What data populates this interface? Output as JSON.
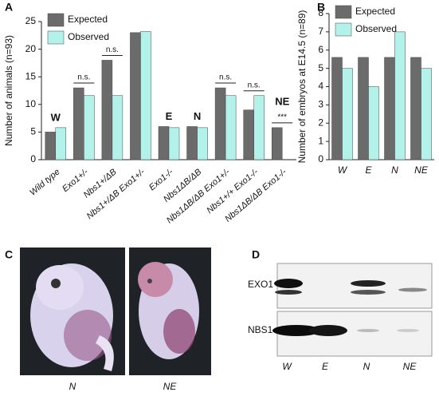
{
  "chart_data": [
    {
      "type": "bar",
      "y_label": "Number of animals (n=93)",
      "categories": [
        "Wild type",
        "Exo1+/-",
        "Nbs1+/ΔB",
        "Nbs1+/ΔB Exo1+/-",
        "Exo1-/-",
        "Nbs1ΔB/ΔB",
        "Nbs1ΔB/ΔB Exo1+/-",
        "Nbs1+/+ Exo1-/-",
        "Nbs1ΔB/ΔB Exo1-/-"
      ],
      "series": [
        {
          "name": "Expected",
          "color": "#6b6b6b",
          "values": [
            5,
            13,
            18,
            23,
            6,
            6,
            13,
            9,
            5.8
          ]
        },
        {
          "name": "Observed",
          "color": "#b3f2ea",
          "values": [
            5.8,
            11.6,
            11.6,
            23.2,
            5.8,
            5.8,
            11.6,
            11.6,
            0
          ]
        }
      ],
      "group_labels": [
        "W",
        null,
        null,
        null,
        "E",
        "N",
        null,
        null,
        "NE"
      ],
      "significance": [
        null,
        "n.s.",
        "n.s.",
        null,
        null,
        null,
        "n.s.",
        "n.s.",
        "***"
      ],
      "ylim": [
        0,
        25
      ],
      "yticks": [
        0,
        5,
        10,
        15,
        20,
        25
      ],
      "legend": "upper left"
    },
    {
      "type": "bar",
      "y_label": "Number of embryos at E14.5 (n=89)",
      "categories": [
        "W",
        "E",
        "N",
        "NE"
      ],
      "series": [
        {
          "name": "Expected",
          "color": "#6b6b6b",
          "values": [
            5.6,
            5.6,
            5.6,
            5.6
          ]
        },
        {
          "name": "Observed",
          "color": "#b3f2ea",
          "values": [
            5,
            4,
            7,
            5
          ]
        }
      ],
      "ylim": [
        0,
        8
      ],
      "yticks": [
        0,
        1,
        2,
        3,
        4,
        5,
        6,
        7,
        8
      ],
      "legend": "upper left"
    }
  ],
  "panels": [
    "A",
    "B",
    "C",
    "D"
  ],
  "photos": {
    "labels": [
      "N",
      "NE"
    ]
  },
  "blot": {
    "rows": [
      "EXO1",
      "NBS1"
    ],
    "lanes": [
      "W",
      "E",
      "N",
      "NE"
    ]
  }
}
